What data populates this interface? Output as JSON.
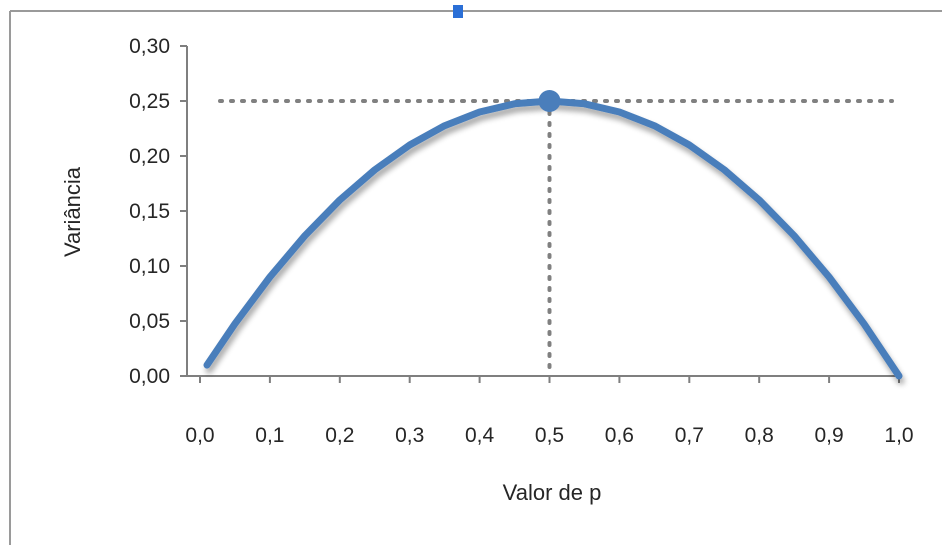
{
  "chart_data": {
    "type": "line",
    "title": "",
    "xlabel": "Valor de p",
    "ylabel": "Variância",
    "xlim": [
      0,
      1
    ],
    "ylim": [
      0,
      0.3
    ],
    "x_ticks": [
      "0,0",
      "0,1",
      "0,2",
      "0,3",
      "0,4",
      "0,5",
      "0,6",
      "0,7",
      "0,8",
      "0,9",
      "1,0"
    ],
    "y_ticks": [
      "0,00",
      "0,05",
      "0,10",
      "0,15",
      "0,20",
      "0,25",
      "0,30"
    ],
    "grid": false,
    "legend": "none",
    "series": [
      {
        "color": "#4a7ebb",
        "x": [
          0.01,
          0.05,
          0.1,
          0.15,
          0.2,
          0.25,
          0.3,
          0.35,
          0.4,
          0.45,
          0.5,
          0.55,
          0.6,
          0.65,
          0.7,
          0.75,
          0.8,
          0.85,
          0.9,
          0.95,
          1.0
        ],
        "y": [
          0.0099,
          0.0475,
          0.09,
          0.1275,
          0.16,
          0.1875,
          0.21,
          0.2275,
          0.24,
          0.2475,
          0.25,
          0.2475,
          0.24,
          0.2275,
          0.21,
          0.1875,
          0.16,
          0.1275,
          0.09,
          0.0475,
          0.0
        ]
      }
    ],
    "highlight_point": {
      "x": 0.5,
      "y": 0.25
    },
    "reference_lines": {
      "horizontal_y": 0.25,
      "vertical_x": 0.5
    }
  }
}
